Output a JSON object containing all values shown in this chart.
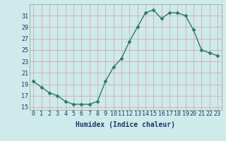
{
  "x": [
    0,
    1,
    2,
    3,
    4,
    5,
    6,
    7,
    8,
    9,
    10,
    11,
    12,
    13,
    14,
    15,
    16,
    17,
    18,
    19,
    20,
    21,
    22,
    23
  ],
  "y": [
    19.5,
    18.5,
    17.5,
    17.0,
    16.0,
    15.5,
    15.5,
    15.5,
    16.0,
    19.5,
    22.0,
    23.5,
    26.5,
    29.0,
    31.5,
    32.0,
    30.5,
    31.5,
    31.5,
    31.0,
    28.5,
    25.0,
    24.5,
    24.0
  ],
  "xlabel": "Humidex (Indice chaleur)",
  "xlim": [
    -0.5,
    23.5
  ],
  "ylim": [
    14.5,
    33.0
  ],
  "yticks": [
    15,
    17,
    19,
    21,
    23,
    25,
    27,
    29,
    31
  ],
  "xticks": [
    0,
    1,
    2,
    3,
    4,
    5,
    6,
    7,
    8,
    9,
    10,
    11,
    12,
    13,
    14,
    15,
    16,
    17,
    18,
    19,
    20,
    21,
    22,
    23
  ],
  "xtick_labels": [
    "0",
    "1",
    "2",
    "3",
    "4",
    "5",
    "6",
    "7",
    "8",
    "9",
    "10",
    "11",
    "12",
    "13",
    "14",
    "15",
    "16",
    "17",
    "18",
    "19",
    "20",
    "21",
    "22",
    "23"
  ],
  "line_color": "#2d7a6a",
  "marker": "D",
  "marker_size": 2.5,
  "bg_color": "#ceeaea",
  "grid_color_v": "#d4a0a0",
  "grid_color_h": "#d4a0a0",
  "label_color": "#1a3a6a",
  "xlabel_fontsize": 7,
  "tick_fontsize": 6
}
